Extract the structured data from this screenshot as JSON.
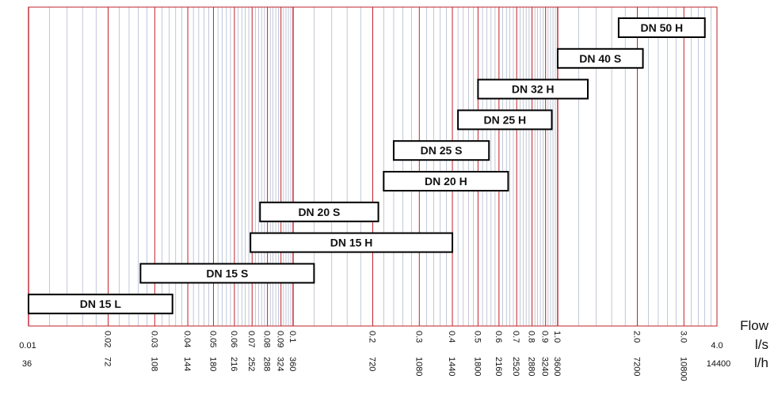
{
  "chart_data": {
    "type": "range-bar",
    "xscale": "log",
    "xlim": [
      0.01,
      4.0
    ],
    "grid": true,
    "colors": {
      "major_grid": "#c0202a",
      "minor_grid": "#9aa3bd",
      "bar_stroke": "#000000",
      "bar_fill": "#ffffff"
    },
    "axis_labels": {
      "quantity": "Flow",
      "unit_ls": "l/s",
      "unit_lh": "l/h"
    },
    "ticks_ls": [
      "0.01",
      "0.02",
      "0.03",
      "0.04",
      "0.05",
      "0.06",
      "0.07",
      "0.08",
      "0.09",
      "0.1",
      "0.2",
      "0.3",
      "0.4",
      "0.5",
      "0.6",
      "0.7",
      "0.8",
      "0.9",
      "1.0",
      "2.0",
      "3.0",
      "4.0"
    ],
    "ticks_lh": [
      "36",
      "72",
      "108",
      "144",
      "180",
      "216",
      "252",
      "288",
      "324",
      "360",
      "720",
      "1080",
      "1440",
      "1800",
      "2160",
      "2520",
      "2880",
      "3240",
      "3600",
      "7200",
      "10800",
      "14400"
    ],
    "bars": [
      {
        "label": "DN 50 H",
        "min": 1.7,
        "max": 3.6
      },
      {
        "label": "DN 40 S",
        "min": 1.0,
        "max": 2.1
      },
      {
        "label": "DN 32 H",
        "min": 0.5,
        "max": 1.3
      },
      {
        "label": "DN 25 H",
        "min": 0.42,
        "max": 0.95
      },
      {
        "label": "DN 25 S",
        "min": 0.24,
        "max": 0.55
      },
      {
        "label": "DN 20 H",
        "min": 0.22,
        "max": 0.65
      },
      {
        "label": "DN 20 S",
        "min": 0.075,
        "max": 0.21
      },
      {
        "label": "DN 15 H",
        "min": 0.069,
        "max": 0.4
      },
      {
        "label": "DN 15 S",
        "min": 0.0265,
        "max": 0.12
      },
      {
        "label": "DN 15 L",
        "min": 0.01,
        "max": 0.035
      }
    ]
  }
}
